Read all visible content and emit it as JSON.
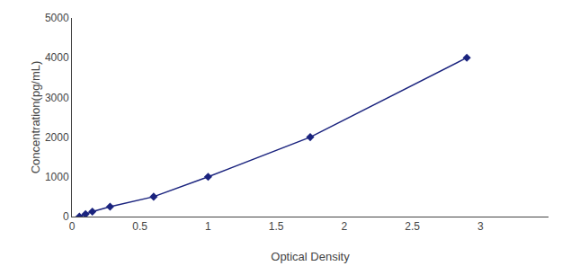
{
  "chart_data": {
    "type": "line",
    "x": [
      0.055,
      0.1,
      0.15,
      0.28,
      0.6,
      1.0,
      1.75,
      2.9
    ],
    "values": [
      0,
      62.5,
      125,
      250,
      500,
      1000,
      2000,
      4000
    ],
    "color": "#1a237e",
    "marker": "diamond",
    "line_style": "solid",
    "xlabel": "Optical Density",
    "ylabel": "Concentration(pg/mL)",
    "xlim": [
      0,
      3.5
    ],
    "ylim": [
      0,
      5000
    ],
    "xticks": [
      0,
      0.5,
      1,
      1.5,
      2,
      2.5,
      3
    ],
    "yticks": [
      0,
      1000,
      2000,
      3000,
      4000,
      5000
    ],
    "grid": false
  }
}
